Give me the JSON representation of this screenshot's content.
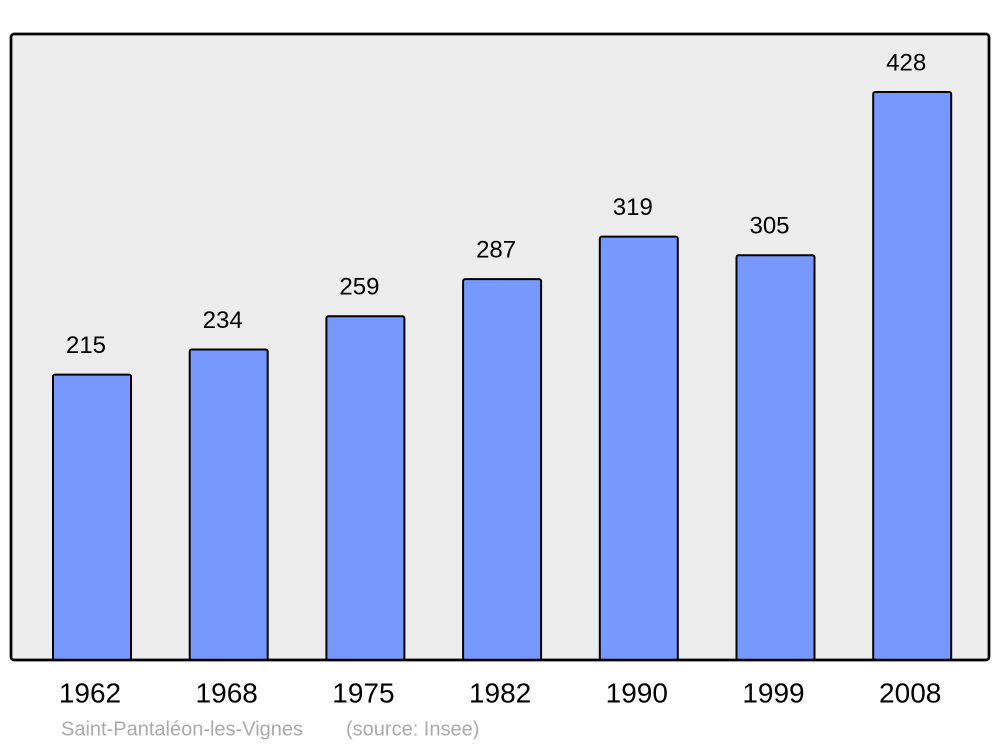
{
  "chart_data": {
    "type": "bar",
    "title": "Saint-Pantaléon-les-Vignes",
    "source": "(source: Insee)",
    "categories": [
      "1962",
      "1968",
      "1975",
      "1982",
      "1990",
      "1999",
      "2008"
    ],
    "values": [
      215,
      234,
      259,
      287,
      319,
      305,
      428
    ],
    "color": "#7799ff"
  }
}
